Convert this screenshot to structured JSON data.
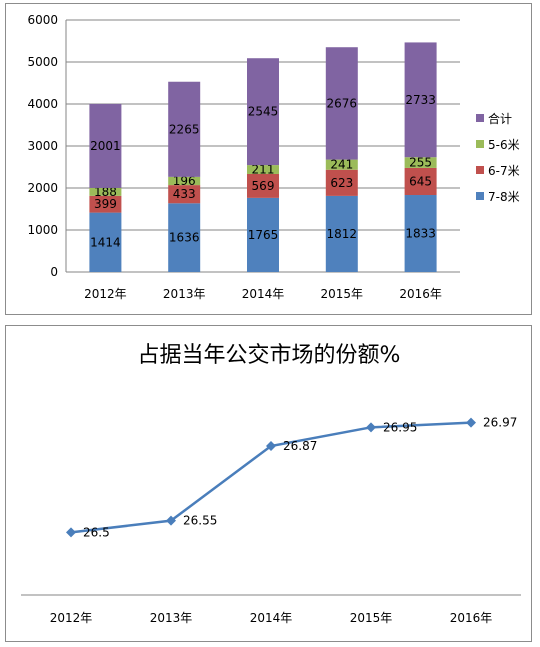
{
  "chart_data": [
    {
      "type": "bar",
      "stacked": true,
      "categories": [
        "2012年",
        "2013年",
        "2014年",
        "2015年",
        "2016年"
      ],
      "series": [
        {
          "name": "7-8米",
          "color": "#4f81bd",
          "values": [
            1414,
            1636,
            1765,
            1812,
            1833
          ]
        },
        {
          "name": "6-7米",
          "color": "#c0504d",
          "values": [
            399,
            433,
            569,
            623,
            645
          ]
        },
        {
          "name": "5-6米",
          "color": "#9bbb59",
          "values": [
            188,
            196,
            211,
            241,
            255
          ]
        },
        {
          "name": "合计",
          "color": "#8064a2",
          "values": [
            2001,
            2265,
            2545,
            2676,
            2733
          ]
        }
      ],
      "ylim": [
        0,
        6000
      ],
      "yticks": [
        0,
        1000,
        2000,
        3000,
        4000,
        5000,
        6000
      ],
      "grid": true,
      "legend": "right"
    },
    {
      "type": "line",
      "title": "占据当年公交市场的份额%",
      "categories": [
        "2012年",
        "2013年",
        "2014年",
        "2015年",
        "2016年"
      ],
      "series": [
        {
          "color": "#4a7ebb",
          "values": [
            26.5,
            26.55,
            26.87,
            26.95,
            26.97
          ]
        }
      ],
      "value_labels": [
        "26.5",
        "26.55",
        "26.87",
        "26.95",
        "26.97"
      ],
      "grid": false
    }
  ]
}
